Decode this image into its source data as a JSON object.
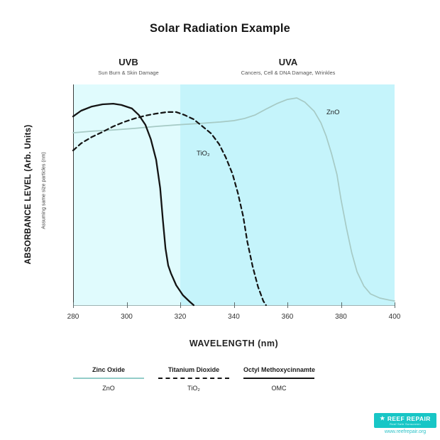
{
  "title": "Solar Radiation Example",
  "bands": {
    "uvb": {
      "label": "UVB",
      "sub": "Sun Burn & Skin Damage",
      "color": "#e0fbfd"
    },
    "uva": {
      "label": "UVA",
      "sub": "Cancers, Cell & DNA Damage, Wrinkles",
      "color": "#c5f4fb"
    }
  },
  "axes": {
    "x_label": "WAVELENGTH (nm)",
    "y_label": "ABSORBANCE LEVEL (Arb. Units)",
    "y_sublabel": "Assuming same size particles (nm)"
  },
  "curve_labels": {
    "tio2": "TiO₂",
    "zno": "ZnO"
  },
  "chart_data": {
    "type": "line",
    "title": "Solar Radiation Example",
    "xlabel": "WAVELENGTH (nm)",
    "ylabel": "ABSORBANCE LEVEL (Arb. Units)",
    "xlim": [
      280,
      400
    ],
    "ylim": [
      0,
      1
    ],
    "x_ticks": [
      280,
      300,
      320,
      340,
      360,
      380,
      400
    ],
    "grid": false,
    "legend_position": "bottom",
    "regions": [
      {
        "label": "UVB",
        "x_range": [
          280,
          320
        ],
        "note": "Sun Burn & Skin Damage",
        "fill": "#e0fbfd"
      },
      {
        "label": "UVA",
        "x_range": [
          320,
          400
        ],
        "note": "Cancers, Cell & DNA Damage, Wrinkles",
        "fill": "#c5f4fb"
      }
    ],
    "series": [
      {
        "name": "ZnO",
        "full_name": "Zinc Oxide",
        "style": "solid",
        "color": "#a6cac5",
        "points": [
          [
            280,
            0.781
          ],
          [
            287,
            0.788
          ],
          [
            295,
            0.794
          ],
          [
            303,
            0.801
          ],
          [
            311,
            0.81
          ],
          [
            319,
            0.817
          ],
          [
            327,
            0.823
          ],
          [
            335,
            0.83
          ],
          [
            340,
            0.836
          ],
          [
            344,
            0.846
          ],
          [
            348,
            0.862
          ],
          [
            352,
            0.888
          ],
          [
            356,
            0.913
          ],
          [
            360,
            0.932
          ],
          [
            363.5,
            0.939
          ],
          [
            366.5,
            0.92
          ],
          [
            370,
            0.878
          ],
          [
            372.5,
            0.826
          ],
          [
            374.5,
            0.765
          ],
          [
            376.5,
            0.685
          ],
          [
            378.5,
            0.592
          ],
          [
            380,
            0.479
          ],
          [
            382,
            0.351
          ],
          [
            384,
            0.238
          ],
          [
            386,
            0.151
          ],
          [
            388.5,
            0.087
          ],
          [
            391,
            0.051
          ],
          [
            394.5,
            0.032
          ],
          [
            398,
            0.023
          ],
          [
            400,
            0.019
          ]
        ]
      },
      {
        "name": "TiO₂",
        "full_name": "Titanium Dioxide",
        "style": "dashed",
        "color": "#141414",
        "points": [
          [
            280,
            0.701
          ],
          [
            283,
            0.733
          ],
          [
            287,
            0.762
          ],
          [
            291,
            0.785
          ],
          [
            295,
            0.81
          ],
          [
            299,
            0.83
          ],
          [
            303,
            0.846
          ],
          [
            307,
            0.859
          ],
          [
            311,
            0.868
          ],
          [
            315,
            0.875
          ],
          [
            318.5,
            0.875
          ],
          [
            321.5,
            0.862
          ],
          [
            325,
            0.842
          ],
          [
            328,
            0.813
          ],
          [
            331.5,
            0.778
          ],
          [
            334.5,
            0.73
          ],
          [
            337,
            0.669
          ],
          [
            339.5,
            0.595
          ],
          [
            341.5,
            0.508
          ],
          [
            343.5,
            0.402
          ],
          [
            345,
            0.289
          ],
          [
            347,
            0.177
          ],
          [
            349,
            0.084
          ],
          [
            351,
            0.019
          ],
          [
            352,
            0
          ]
        ]
      },
      {
        "name": "OMC",
        "full_name": "Octyl Methoxycinnamte",
        "style": "solid",
        "color": "#141414",
        "points": [
          [
            280,
            0.855
          ],
          [
            283,
            0.881
          ],
          [
            287,
            0.9
          ],
          [
            291,
            0.91
          ],
          [
            295,
            0.913
          ],
          [
            298,
            0.907
          ],
          [
            302,
            0.891
          ],
          [
            304.5,
            0.862
          ],
          [
            307,
            0.817
          ],
          [
            309,
            0.752
          ],
          [
            311,
            0.659
          ],
          [
            312.5,
            0.531
          ],
          [
            313.5,
            0.386
          ],
          [
            314.5,
            0.257
          ],
          [
            315.5,
            0.18
          ],
          [
            316.5,
            0.145
          ],
          [
            318.5,
            0.09
          ],
          [
            321,
            0.045
          ],
          [
            323.5,
            0.016
          ],
          [
            325,
            0
          ]
        ]
      }
    ]
  },
  "legend": [
    {
      "title": "Zinc Oxide",
      "sub": "ZnO",
      "line": "solid",
      "color": "#93cdc9"
    },
    {
      "title": "Titanium Dioxide",
      "sub": "TiO₂",
      "line": "dashed",
      "color": "#141414"
    },
    {
      "title": "Octyl Methoxycinnamte",
      "sub": "OMC",
      "line": "solid",
      "color": "#141414"
    }
  ],
  "footer": {
    "star": "★",
    "brand": "REEF REPAIR",
    "tagline": "Reef Safe Sunscreen",
    "url": "www.reefrepair.org",
    "brand_color": "#18c6c6",
    "url_color": "#2cc3c8"
  }
}
